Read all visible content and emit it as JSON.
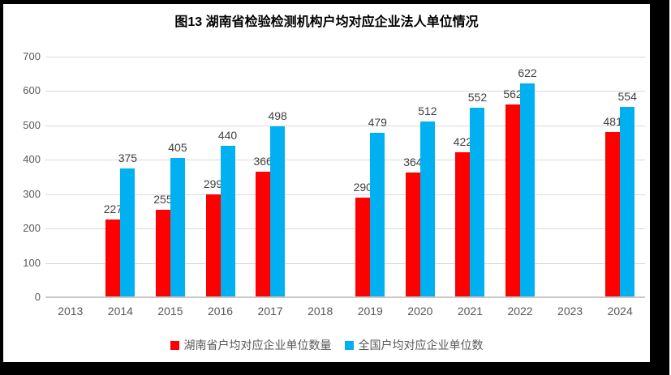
{
  "chart_data": {
    "type": "bar",
    "title": "图13 湖南省检验检测机构户均对应企业法人单位情况",
    "categories": [
      "2013",
      "2014",
      "2015",
      "2016",
      "2017",
      "2018",
      "2019",
      "2020",
      "2021",
      "2022",
      "2023",
      "2024"
    ],
    "series": [
      {
        "name": "湖南省户均对应企业单位数量",
        "color": "#FF0000",
        "values": [
          null,
          227,
          255,
          299,
          366,
          null,
          290,
          364,
          422,
          562,
          null,
          481
        ]
      },
      {
        "name": "全国户均对应企业单位数",
        "color": "#00B0F0",
        "values": [
          null,
          375,
          405,
          440,
          498,
          null,
          479,
          512,
          552,
          622,
          null,
          554
        ]
      }
    ],
    "ylim": [
      0,
      700
    ],
    "ytick_step": 100,
    "yticks": [
      "0",
      "100",
      "200",
      "300",
      "400",
      "500",
      "600",
      "700"
    ],
    "grid": true,
    "data_labels": true,
    "legend_position": "bottom",
    "xlabel": "",
    "ylabel": ""
  },
  "colors": {
    "hunan_series": "#FF0000",
    "national_series": "#00B0F0",
    "gridline": "#D9D9D9",
    "axis_line": "#C9C9C9",
    "tick_text": "#595959",
    "data_label_text": "#404040",
    "title_text": "#000000",
    "frame_border": "#000000",
    "background": "#FFFFFF"
  }
}
